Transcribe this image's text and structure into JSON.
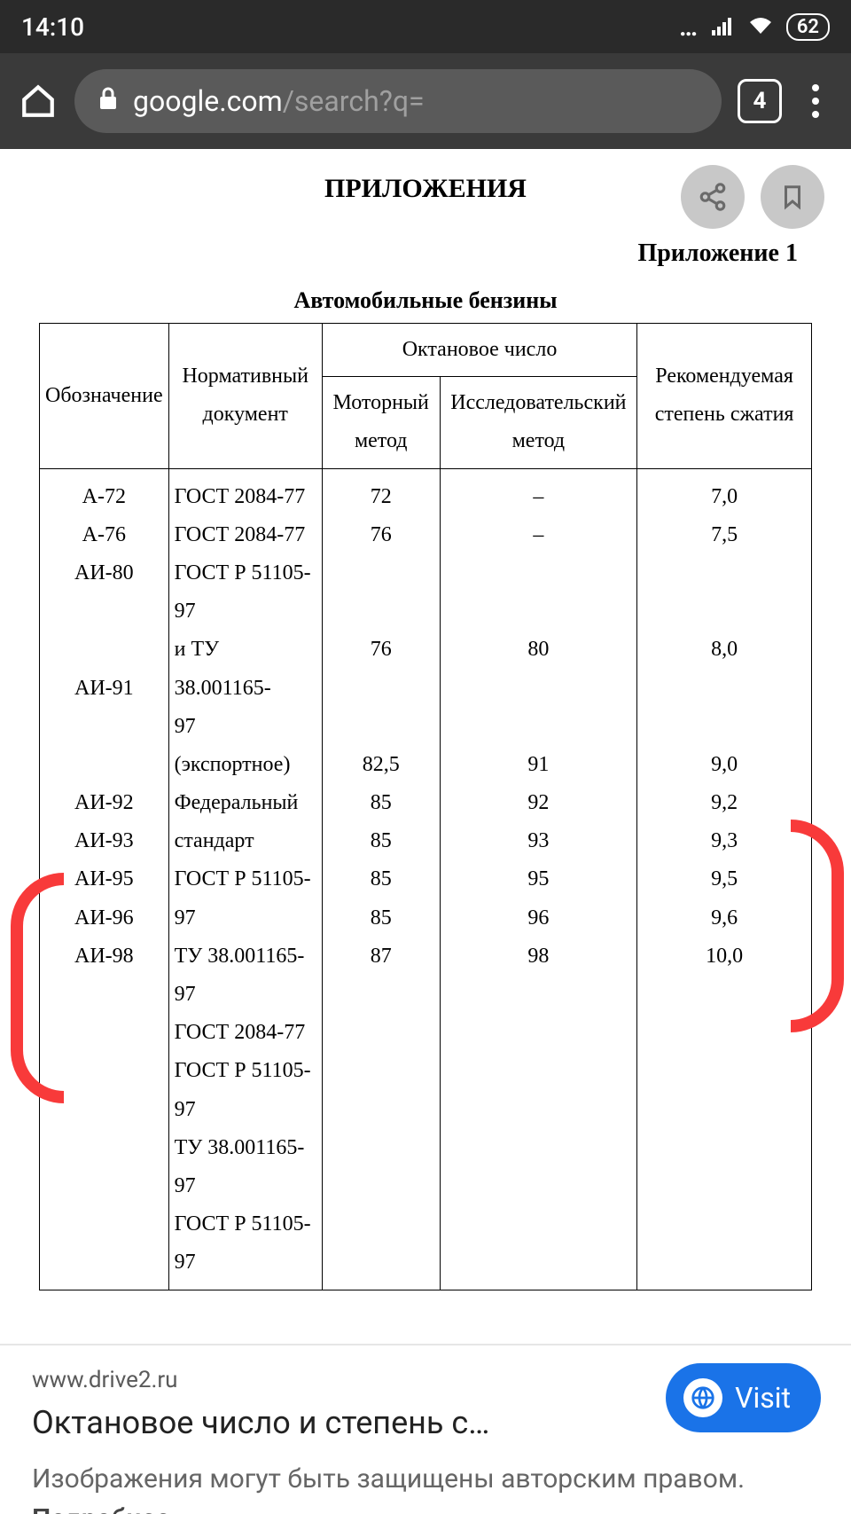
{
  "status": {
    "time": "14:10",
    "battery": "62"
  },
  "browser": {
    "domain": "google.com",
    "path": "/search?q=",
    "tab_count": "4"
  },
  "document": {
    "heading": "ПРИЛОЖЕНИЯ",
    "appendix_label": "Приложение 1",
    "table_title": "Автомобильные бензины",
    "table": {
      "headers": {
        "designation": "Обозначение",
        "normative": "Нормативный документ",
        "octane_group": "Октановое число",
        "motor": "Моторный метод",
        "research": "Исследовательский метод",
        "compression": "Рекомендуемая степень сжатия"
      },
      "rows": [
        {
          "d": "А-72",
          "doc": "ГОСТ 2084-77",
          "m": "72",
          "r": "–",
          "c": "7,0"
        },
        {
          "d": "А-76",
          "doc": "ГОСТ 2084-77",
          "m": "76",
          "r": "–",
          "c": "7,5"
        },
        {
          "d": "АИ-80",
          "doc": "ГОСТ Р 51105-97",
          "m": "",
          "r": "",
          "c": ""
        },
        {
          "d": "",
          "doc": "и ТУ 38.001165-",
          "m": "",
          "r": "",
          "c": ""
        },
        {
          "d": "",
          "doc": "97 (экспортное)",
          "m": "76",
          "r": "80",
          "c": "8,0"
        },
        {
          "d": "АИ-91",
          "doc": "Федеральный",
          "m": "",
          "r": "",
          "c": ""
        },
        {
          "d": "",
          "doc": "стандарт",
          "m": "",
          "r": "",
          "c": ""
        },
        {
          "d": "",
          "doc": "ГОСТ Р 51105-97",
          "m": "82,5",
          "r": "91",
          "c": "9,0"
        },
        {
          "d": "АИ-92",
          "doc": "ТУ 38.001165-97",
          "m": "85",
          "r": "92",
          "c": "9,2"
        },
        {
          "d": "АИ-93",
          "doc": "ГОСТ 2084-77",
          "m": "85",
          "r": "93",
          "c": "9,3"
        },
        {
          "d": "АИ-95",
          "doc": "ГОСТ Р 51105-97",
          "m": "85",
          "r": "95",
          "c": "9,5"
        },
        {
          "d": "АИ-96",
          "doc": "ТУ 38.001165-97",
          "m": "85",
          "r": "96",
          "c": "9,6"
        },
        {
          "d": "АИ-98",
          "doc": "ГОСТ Р 51105-97",
          "m": "87",
          "r": "98",
          "c": "10,0"
        }
      ]
    },
    "annotation_color": "#f83a3a"
  },
  "result": {
    "site": "www.drive2.ru",
    "title": "Октановое число и степень с…",
    "visit_label": "Visit",
    "disclaimer": "Изображения могут быть защищены авторским правом. ",
    "disclaimer_more": "Подробнее…"
  },
  "colors": {
    "status_bg": "#2a2a2a",
    "browser_bg": "#3a3a3a",
    "pill_bg": "#5a5a5a",
    "visit_bg": "#1a73e8",
    "action_btn_bg": "#c8c8c8"
  }
}
